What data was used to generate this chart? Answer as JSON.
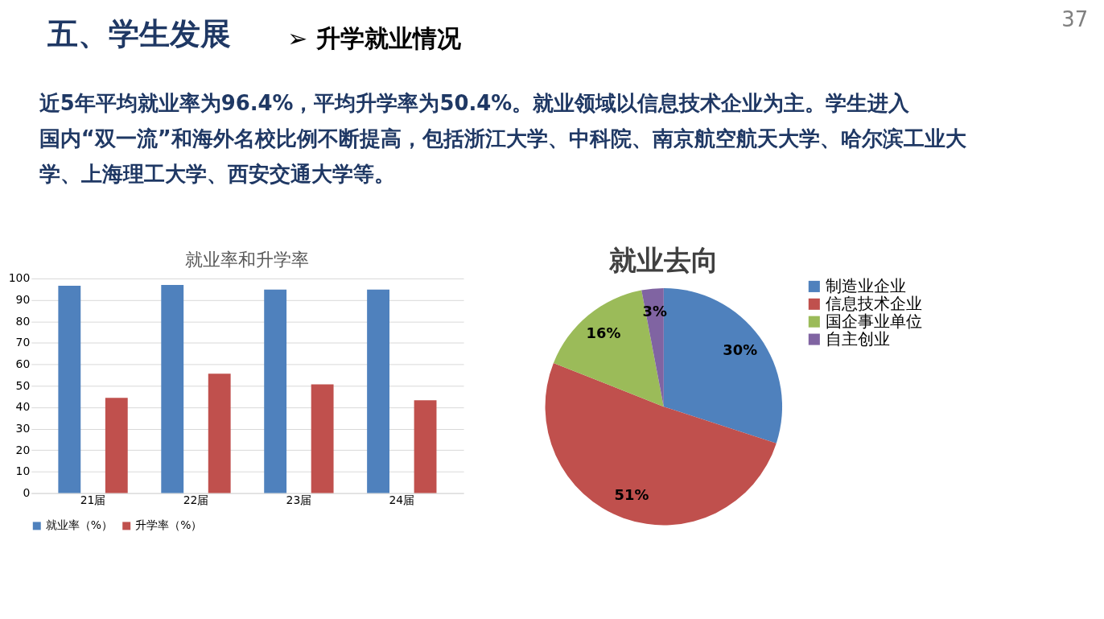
{
  "chart_data": [
    {
      "type": "other",
      "title": "五、学生发展",
      "subtitle": "➢ 升学就业情况",
      "annotations": [
        "近5年平均就业率为96.4%，平均升学率为50.4%。就业领域以信息技术企业为主。学生进入国内“双一流”和海外名校比例不断提高，包括浙江大学、中科院、南京航空航天大学、哈尔滨工业大学、上海理工大学、西安交通大学等。",
        "37"
      ]
    },
    {
      "type": "bar",
      "title": "就业率和升学率",
      "categories": [
        "21届",
        "22届",
        "23届",
        "24届"
      ],
      "series": [
        {
          "name": "就业率（%）",
          "color": "#4f81bd",
          "values": [
            96.6,
            97.0,
            94.8,
            94.8
          ]
        },
        {
          "name": "升学率（%）",
          "color": "#c0504d",
          "values": [
            44.4,
            55.6,
            50.7,
            43.3
          ]
        }
      ],
      "ylim": [
        0,
        100
      ],
      "yticks": [
        0,
        10,
        20,
        30,
        40,
        50,
        60,
        70,
        80,
        90,
        100
      ],
      "grid": "y",
      "legend": "bottom"
    },
    {
      "type": "pie",
      "title": "就业去向",
      "categories": [
        "制造业企业",
        "信息技术企业",
        "国企事业单位",
        "自主创业"
      ],
      "values": [
        30,
        51,
        16,
        3
      ],
      "colors": [
        "#4f81bd",
        "#c0504d",
        "#9bbb59",
        "#8064a2"
      ],
      "value_labels": [
        "30%",
        "51%",
        "16%",
        "3%"
      ],
      "legend": "right"
    }
  ]
}
